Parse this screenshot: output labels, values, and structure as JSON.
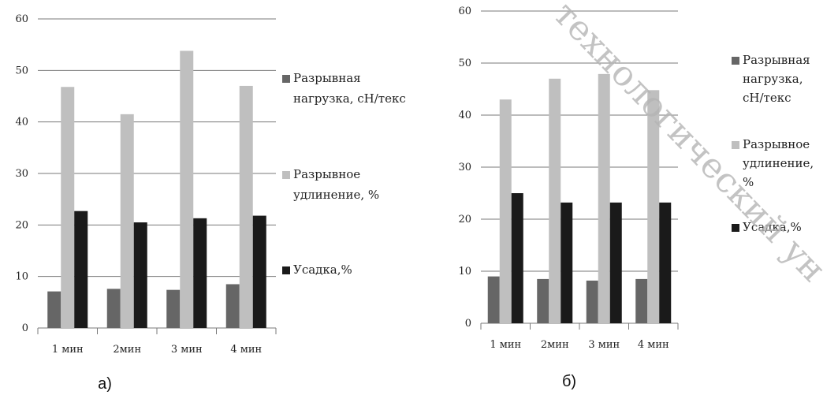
{
  "watermark": "технологический ун",
  "chart_data": [
    {
      "type": "bar",
      "panel_label": "а)",
      "categories": [
        "1 мин",
        "2мин",
        "3 мин",
        "4 мин"
      ],
      "ylim": [
        0,
        60
      ],
      "yticks": [
        0,
        10,
        20,
        30,
        40,
        50,
        60
      ],
      "ytick_labels": [
        "0",
        "10",
        "20",
        "30",
        "40",
        "50",
        "60"
      ],
      "legend_position": "right",
      "grid": true,
      "series": [
        {
          "name": "Разрывная нагрузка, сН/текс",
          "legend_lines": [
            "Разрывная",
            "нагрузка, сН/текс"
          ],
          "color": "#666666",
          "values": [
            7.1,
            7.6,
            7.4,
            8.5
          ]
        },
        {
          "name": "Разрывное удлинение, %",
          "legend_lines": [
            "Разрывное",
            "удлинение, %"
          ],
          "color": "#bfbfbf",
          "values": [
            46.8,
            41.5,
            53.8,
            47.0
          ]
        },
        {
          "name": "Усадка,%",
          "legend_lines": [
            "Усадка,%"
          ],
          "color": "#1a1a1a",
          "values": [
            22.7,
            20.5,
            21.3,
            21.8
          ]
        }
      ]
    },
    {
      "type": "bar",
      "panel_label": "б)",
      "categories": [
        "1 мин",
        "2мин",
        "3 мин",
        "4 мин"
      ],
      "ylim": [
        0,
        60
      ],
      "yticks": [
        0,
        10,
        20,
        30,
        40,
        50,
        60
      ],
      "ytick_labels": [
        "0",
        "10",
        "20",
        "30",
        "40",
        "50",
        "60"
      ],
      "legend_position": "right",
      "grid": true,
      "series": [
        {
          "name": "Разрывная нагрузка, сН/текс",
          "legend_lines": [
            "Разрывная",
            "нагрузка,",
            "сН/текс"
          ],
          "color": "#666666",
          "values": [
            9.0,
            8.5,
            8.2,
            8.5
          ]
        },
        {
          "name": "Разрывное удлинение, %",
          "legend_lines": [
            "Разрывное",
            "удлинение,",
            "%"
          ],
          "color": "#bfbfbf",
          "values": [
            43.0,
            47.0,
            47.9,
            44.8
          ]
        },
        {
          "name": "Усадка,%",
          "legend_lines": [
            "Усадка,%"
          ],
          "color": "#1a1a1a",
          "values": [
            25.0,
            23.2,
            23.2,
            23.2
          ]
        }
      ]
    }
  ]
}
